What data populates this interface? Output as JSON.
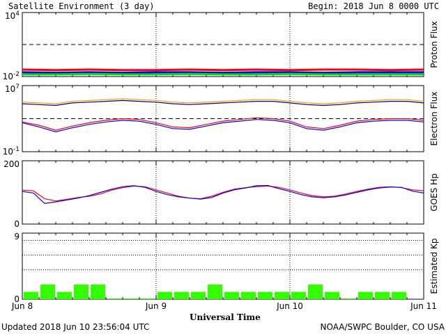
{
  "header": {
    "title": "Satellite Environment (3 day)",
    "begin": "Begin:  2018 Jun 8 0000 UTC"
  },
  "footer": {
    "updated": "Updated 2018 Jun 10 23:56:04 UTC",
    "credit": "NOAA/SWPC Boulder, CO USA"
  },
  "chart_data": [
    {
      "type": "line",
      "ylabel": "Proton Flux",
      "scale": "log",
      "ylim_exp": [
        -2,
        4
      ],
      "ytick_labels": [
        "10^4",
        "10^-2"
      ],
      "threshold_exp": 1,
      "x_hours": [
        0,
        6,
        12,
        18,
        24,
        30,
        36,
        42,
        48,
        54,
        60,
        66,
        72
      ],
      "series": [
        {
          "color": "#ff0000",
          "values_exp": [
            -1.35,
            -1.4,
            -1.35,
            -1.4,
            -1.4,
            -1.35,
            -1.4,
            -1.35,
            -1.4,
            -1.35,
            -1.35,
            -1.4,
            -1.35
          ]
        },
        {
          "color": "#0000ff",
          "values_exp": [
            -1.6,
            -1.65,
            -1.6,
            -1.65,
            -1.6,
            -1.6,
            -1.65,
            -1.6,
            -1.6,
            -1.65,
            -1.6,
            -1.6,
            -1.6
          ]
        },
        {
          "color": "#00dd00",
          "values_exp": [
            -1.8,
            -1.8,
            -1.75,
            -1.8,
            -1.8,
            -1.75,
            -1.8,
            -1.8,
            -1.75,
            -1.8,
            -1.8,
            -1.8,
            -1.8
          ]
        }
      ]
    },
    {
      "type": "line",
      "ylabel": "Electron Flux",
      "scale": "log",
      "ylim_exp": [
        -1,
        7
      ],
      "ytick_labels": [
        "10^7",
        "10^-1"
      ],
      "threshold_exp": 3,
      "x_hours": [
        0,
        3,
        6,
        9,
        12,
        15,
        18,
        21,
        24,
        27,
        30,
        33,
        36,
        39,
        42,
        45,
        48,
        51,
        54,
        57,
        60,
        63,
        66,
        69,
        72
      ],
      "series": [
        {
          "color": "#ff9900",
          "values_exp": [
            5.0,
            4.9,
            4.8,
            5.1,
            5.2,
            5.3,
            5.4,
            5.3,
            5.2,
            5.0,
            4.9,
            5.0,
            5.1,
            5.2,
            5.3,
            5.3,
            5.1,
            4.9,
            4.8,
            4.9,
            5.1,
            5.2,
            5.3,
            5.3,
            5.1
          ]
        },
        {
          "color": "#000080",
          "values_exp": [
            4.8,
            4.7,
            4.6,
            4.9,
            5.0,
            5.1,
            5.2,
            5.1,
            5.0,
            4.8,
            4.7,
            4.8,
            4.9,
            5.0,
            5.1,
            5.1,
            4.9,
            4.7,
            4.6,
            4.7,
            4.9,
            5.0,
            5.1,
            5.1,
            4.9
          ]
        },
        {
          "color": "#ff0000",
          "values_exp": [
            2.6,
            2.2,
            1.6,
            2.1,
            2.5,
            2.8,
            3.0,
            2.9,
            2.5,
            2.0,
            1.9,
            2.3,
            2.7,
            2.9,
            3.1,
            3.0,
            2.7,
            2.0,
            1.8,
            2.2,
            2.7,
            2.9,
            3.0,
            3.0,
            2.8
          ]
        },
        {
          "color": "#0000ff",
          "values_exp": [
            2.5,
            2.0,
            1.4,
            1.9,
            2.3,
            2.6,
            2.8,
            2.7,
            2.3,
            1.8,
            1.7,
            2.1,
            2.5,
            2.7,
            2.9,
            2.8,
            2.5,
            1.8,
            1.6,
            2.0,
            2.5,
            2.7,
            2.8,
            2.8,
            2.6
          ]
        }
      ]
    },
    {
      "type": "line",
      "ylabel": "GOES Hp",
      "ylim": [
        0,
        200
      ],
      "ytick_labels": [
        "200",
        "0"
      ],
      "x_hours": [
        0,
        2,
        4,
        6,
        8,
        10,
        12,
        14,
        16,
        18,
        20,
        22,
        24,
        26,
        28,
        30,
        32,
        34,
        36,
        38,
        40,
        42,
        44,
        46,
        48,
        50,
        52,
        54,
        56,
        58,
        60,
        62,
        64,
        66,
        68,
        70,
        72
      ],
      "series": [
        {
          "color": "#ff0000",
          "values": [
            107,
            105,
            80,
            73,
            78,
            84,
            88,
            95,
            107,
            115,
            120,
            118,
            108,
            98,
            88,
            82,
            80,
            88,
            100,
            110,
            115,
            118,
            120,
            116,
            108,
            98,
            90,
            86,
            88,
            95,
            103,
            110,
            116,
            118,
            115,
            108,
            105
          ]
        },
        {
          "color": "#0000ff",
          "values": [
            103,
            98,
            65,
            70,
            76,
            82,
            90,
            100,
            110,
            118,
            121,
            116,
            103,
            93,
            86,
            82,
            79,
            84,
            98,
            108,
            114,
            121,
            122,
            112,
            103,
            93,
            86,
            83,
            86,
            92,
            100,
            108,
            114,
            117,
            116,
            104,
            98
          ]
        }
      ]
    },
    {
      "type": "bar",
      "ylabel": "Estimated Kp",
      "ylim": [
        0,
        9
      ],
      "ytick_labels": [
        "9",
        "0"
      ],
      "gridlines": [
        4,
        6,
        8
      ],
      "color": "#33ff00",
      "x_hours_start": [
        0,
        3,
        6,
        9,
        12,
        15,
        18,
        21,
        24,
        27,
        30,
        33,
        36,
        39,
        42,
        45,
        48,
        51,
        54,
        57,
        60,
        63,
        66,
        69
      ],
      "values": [
        1,
        2,
        1,
        2,
        2,
        0.1,
        0.1,
        0.1,
        1,
        1,
        1,
        2,
        1,
        1,
        1,
        1,
        1,
        2,
        1,
        0.1,
        1,
        1,
        1,
        0
      ]
    }
  ],
  "x_axis": {
    "title": "Universal Time",
    "tick_labels": [
      "Jun 8",
      "Jun 9",
      "Jun 10",
      "Jun 11"
    ],
    "divider_hours": [
      24,
      48
    ]
  }
}
